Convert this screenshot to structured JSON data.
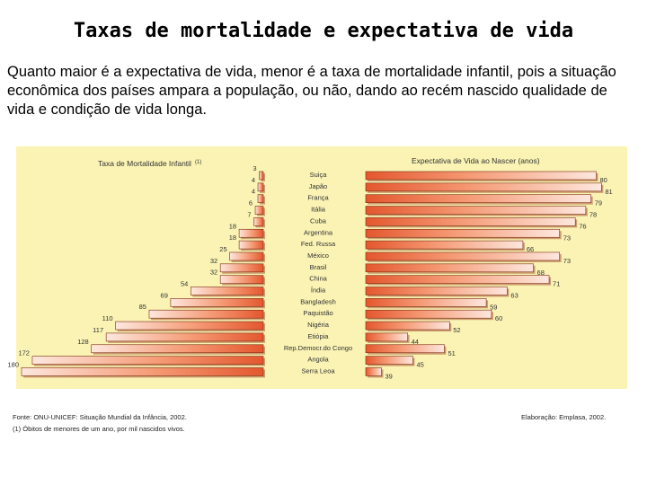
{
  "slide": {
    "title": "Taxas de mortalidade e expectativa de vida",
    "body": "Quanto maior é a expectativa de vida, menor é a taxa de mortalidade infantil, pois a situação econômica dos países ampara a população, ou não, dando ao recém nascido qualidade de vida e condição de vida longa."
  },
  "chart_data": {
    "type": "bar",
    "layout": "mirrored-horizontal",
    "categories": [
      "Suiça",
      "Japão",
      "França",
      "Itália",
      "Cuba",
      "Argentina",
      "Fed. Russa",
      "México",
      "Brasil",
      "China",
      "Índia",
      "Bangladesh",
      "Paquistão",
      "Nigéria",
      "Etiópia",
      "Rep.Democr.do Congo",
      "Angola",
      "Serra Leoa"
    ],
    "series": [
      {
        "name": "Taxa de Mortalidade Infantil",
        "note": "(1)",
        "values": [
          3,
          4,
          4,
          6,
          7,
          18,
          18,
          25,
          32,
          32,
          54,
          69,
          85,
          110,
          117,
          128,
          172,
          180
        ]
      },
      {
        "name": "Expectativa de Vida ao Nascer (anos)",
        "values": [
          80,
          81,
          79,
          78,
          76,
          73,
          66,
          73,
          68,
          71,
          63,
          59,
          60,
          52,
          44,
          51,
          45,
          39
        ]
      }
    ],
    "xlim_left": [
      0,
      180
    ],
    "xlim_right": [
      36,
      82
    ],
    "colors": {
      "bar_dark": "#e4572e",
      "bar_light": "#fde7de",
      "background": "#faf3b4",
      "text": "#333333"
    }
  },
  "footer": {
    "source": "Fonte: ONU-UNICEF: Situação Mundial da Infância, 2002.",
    "note": "(1) Óbitos de menores de um ano, por mil nascidos vivos.",
    "credit": "Elaboração: Emplasa, 2002."
  }
}
